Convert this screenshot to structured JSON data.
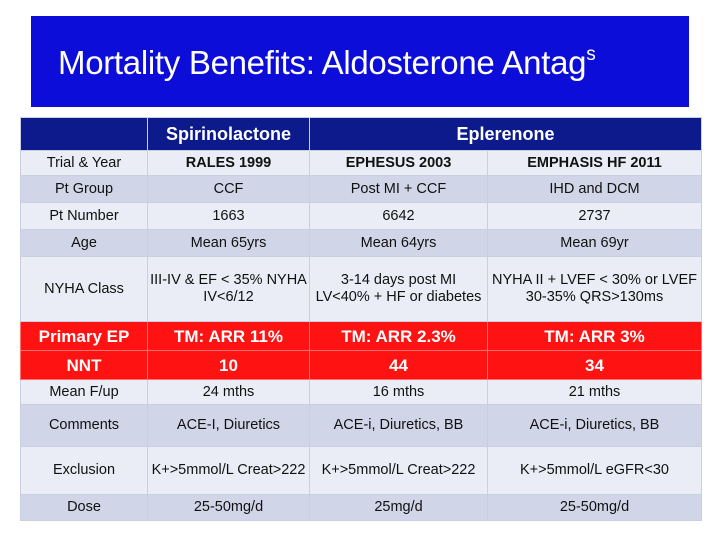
{
  "title": {
    "main": "Mortality Benefits: Aldosterone Antag",
    "superscript": "s"
  },
  "header": {
    "group_1": "Spirinolactone",
    "group_2": "Eplerenone"
  },
  "rows": [
    {
      "label": "Trial & Year",
      "values": [
        "RALES 1999",
        "EPHESUS 2003",
        "EMPHASIS HF 2011"
      ]
    },
    {
      "label": "Pt Group",
      "values": [
        "CCF",
        "Post MI + CCF",
        "IHD and DCM"
      ]
    },
    {
      "label": "Pt Number",
      "values": [
        "1663",
        "6642",
        "2737"
      ]
    },
    {
      "label": "Age",
      "values": [
        "Mean 65yrs",
        "Mean 64yrs",
        "Mean 69yr"
      ]
    },
    {
      "label": "NYHA Class",
      "values": [
        "III-IV & EF < 35% NYHA IV<6/12",
        "3-14 days post MI LV<40% + HF or diabetes",
        "NYHA II + LVEF < 30% or LVEF 30-35% QRS>130ms"
      ]
    },
    {
      "label": "Primary EP",
      "values": [
        "TM: ARR 11%",
        "TM: ARR 2.3%",
        "TM: ARR 3%"
      ]
    },
    {
      "label": "NNT",
      "values": [
        "10",
        "44",
        "34"
      ]
    },
    {
      "label": "Mean F/up",
      "values": [
        "24 mths",
        "16 mths",
        "21 mths"
      ]
    },
    {
      "label": "Comments",
      "values": [
        "ACE-I, Diuretics",
        "ACE-i, Diuretics, BB",
        "ACE-i, Diuretics, BB"
      ]
    },
    {
      "label": "Exclusion",
      "values": [
        "K+>5mmol/L Creat>222",
        "K+>5mmol/L Creat>222",
        "K+>5mmol/L eGFR<30"
      ]
    },
    {
      "label": "Dose",
      "values": [
        "25-50mg/d",
        "25mg/d",
        "25-50mg/d"
      ]
    }
  ],
  "colors": {
    "title_bg": "#0d0dd9",
    "header_bg": "#0d1a8c",
    "highlight_bg": "#ff1212",
    "row_light": "#eaedf5",
    "row_dark": "#d0d6e8"
  }
}
